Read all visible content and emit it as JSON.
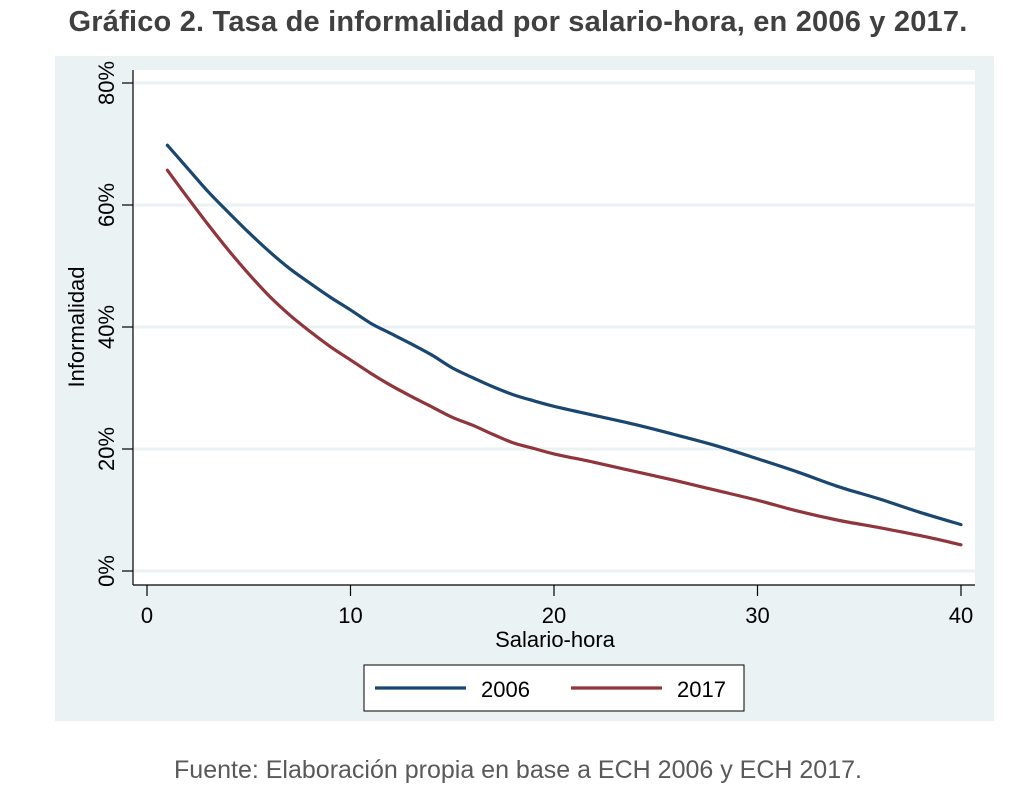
{
  "title": "Gráfico 2. Tasa de informalidad por salario-hora, en 2006 y 2017.",
  "source": "Fuente: Elaboración propia en base a ECH 2006 y ECH 2017.",
  "colors": {
    "panel_background": "#eaf2f3",
    "plot_background": "#ffffff",
    "gridline": "#eaf2f3",
    "axis": "#000000",
    "series_2006": "#1a476f",
    "series_2017": "#90353b"
  },
  "chart_data": {
    "type": "line",
    "title": "Gráfico 2. Tasa de informalidad por salario-hora, en 2006 y 2017.",
    "xlabel": "Salario-hora",
    "ylabel": "Informalidad",
    "xlim": [
      0,
      40
    ],
    "ylim": [
      0,
      80
    ],
    "x_ticks": [
      0,
      10,
      20,
      30,
      40
    ],
    "y_ticks": [
      0,
      20,
      40,
      60,
      80
    ],
    "x_tick_labels": [
      "0",
      "10",
      "20",
      "30",
      "40"
    ],
    "y_tick_labels": [
      "0%",
      "20%",
      "40%",
      "60%",
      "80%"
    ],
    "grid": true,
    "legend_position": "bottom",
    "series": [
      {
        "name": "2006",
        "color": "#1a476f",
        "x": [
          1,
          2,
          3,
          4,
          5,
          6,
          7,
          8,
          9,
          10,
          11,
          12,
          13,
          14,
          15,
          16,
          17,
          18,
          19,
          20,
          22,
          24,
          26,
          28,
          30,
          32,
          34,
          36,
          38,
          40
        ],
        "y": [
          69.8,
          66.0,
          62.2,
          58.8,
          55.5,
          52.4,
          49.6,
          47.2,
          44.9,
          42.8,
          40.6,
          38.9,
          37.2,
          35.4,
          33.3,
          31.7,
          30.2,
          28.9,
          27.9,
          27.0,
          25.5,
          24.0,
          22.3,
          20.5,
          18.4,
          16.2,
          13.8,
          11.8,
          9.6,
          7.6
        ]
      },
      {
        "name": "2017",
        "color": "#90353b",
        "x": [
          1,
          2,
          3,
          4,
          5,
          6,
          7,
          8,
          9,
          10,
          11,
          12,
          13,
          14,
          15,
          16,
          17,
          18,
          19,
          20,
          22,
          24,
          26,
          28,
          30,
          32,
          34,
          36,
          38,
          40
        ],
        "y": [
          65.7,
          61.2,
          56.8,
          52.6,
          48.7,
          45.1,
          42.0,
          39.3,
          36.8,
          34.6,
          32.4,
          30.4,
          28.6,
          26.9,
          25.2,
          23.9,
          22.4,
          21.0,
          20.1,
          19.2,
          17.8,
          16.3,
          14.8,
          13.2,
          11.6,
          9.8,
          8.3,
          7.1,
          5.8,
          4.3
        ]
      }
    ]
  }
}
